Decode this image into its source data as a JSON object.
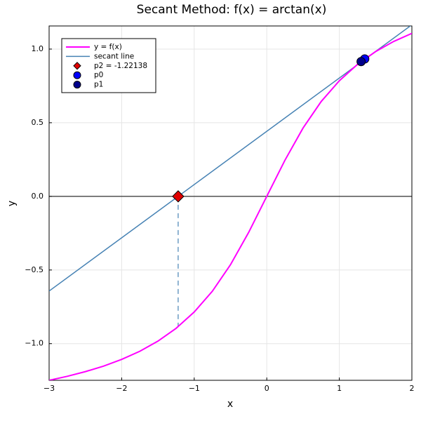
{
  "chart_data": {
    "type": "line",
    "title": "Secant Method: f(x) = arctan(x)",
    "xlabel": "x",
    "ylabel": "y",
    "xlim": [
      -3,
      2
    ],
    "ylim": [
      -1.249,
      1.157
    ],
    "xticks": [
      {
        "value": -3,
        "label": "−3"
      },
      {
        "value": -2,
        "label": "−2"
      },
      {
        "value": -1,
        "label": "−1"
      },
      0,
      1,
      2
    ],
    "yticks": [
      {
        "value": -1,
        "label": "−1.0"
      },
      {
        "value": -0.5,
        "label": "−0.5"
      },
      {
        "value": 0,
        "label": "0.0"
      },
      {
        "value": 0.5,
        "label": "0.5"
      },
      {
        "value": 1,
        "label": "1.0"
      }
    ],
    "grid": true,
    "legend": "top-left",
    "series": [
      {
        "name": "y = f(x)",
        "color": "#ff00ff",
        "width": 2,
        "style": "solid",
        "x": [
          -3,
          -2.75,
          -2.5,
          -2.25,
          -2,
          -1.75,
          -1.5,
          -1.25,
          -1,
          -0.75,
          -0.5,
          -0.25,
          0,
          0.25,
          0.5,
          0.75,
          1,
          1.25,
          1.5,
          1.75,
          2
        ],
        "values": [
          -1.249,
          -1.222,
          -1.19,
          -1.153,
          -1.107,
          -1.052,
          -0.983,
          -0.896,
          -0.785,
          -0.644,
          -0.464,
          -0.245,
          0,
          0.245,
          0.464,
          0.644,
          0.785,
          0.896,
          0.983,
          1.052,
          1.107
        ]
      },
      {
        "name": "secant line",
        "color": "#4682b4",
        "width": 1.5,
        "style": "solid",
        "x": [
          -3,
          2
        ],
        "values": [
          -0.643,
          1.165
        ]
      },
      {
        "color": "#4682b4",
        "width": 1.2,
        "style": "dashed",
        "x": [
          -1.22138,
          -1.22138
        ],
        "values": [
          0,
          -0.885
        ]
      },
      {
        "color": "#000000",
        "width": 1,
        "style": "solid",
        "x": [
          -3,
          2
        ],
        "values": [
          0,
          0
        ]
      },
      {
        "name": "p2 = -1.22138",
        "color": "#e00000",
        "marker": "diamond",
        "x": [
          -1.22138
        ],
        "values": [
          0
        ]
      },
      {
        "name": "p0",
        "color": "#0000ff",
        "marker": "circle",
        "x": [
          1.35
        ],
        "values": [
          0.933
        ]
      },
      {
        "name": "p1",
        "color": "#00008b",
        "marker": "circle",
        "x": [
          1.3
        ],
        "values": [
          0.915
        ]
      }
    ]
  }
}
